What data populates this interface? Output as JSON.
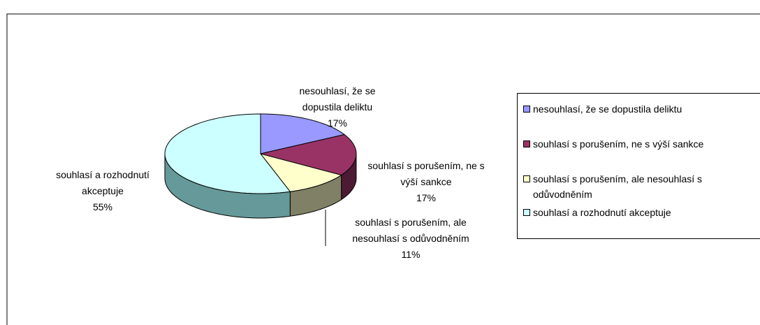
{
  "chart_data": {
    "type": "pie",
    "categories": [
      "nesouhlasí, že se dopustila deliktu",
      "souhlasí s porušením, ne s výší sankce",
      "souhlasí s porušením, ale nesouhlasí s odůvodněním",
      "souhlasí a rozhodnutí akceptuje"
    ],
    "values": [
      17,
      17,
      11,
      55
    ],
    "value_labels": [
      "17%",
      "17%",
      "11%",
      "55%"
    ],
    "colors": [
      "#9999ff",
      "#993366",
      "#ffffcc",
      "#ccffff"
    ],
    "side_colors": [
      "#5c5c99",
      "#4d1a33",
      "#808066",
      "#669999"
    ],
    "legend": "right"
  }
}
